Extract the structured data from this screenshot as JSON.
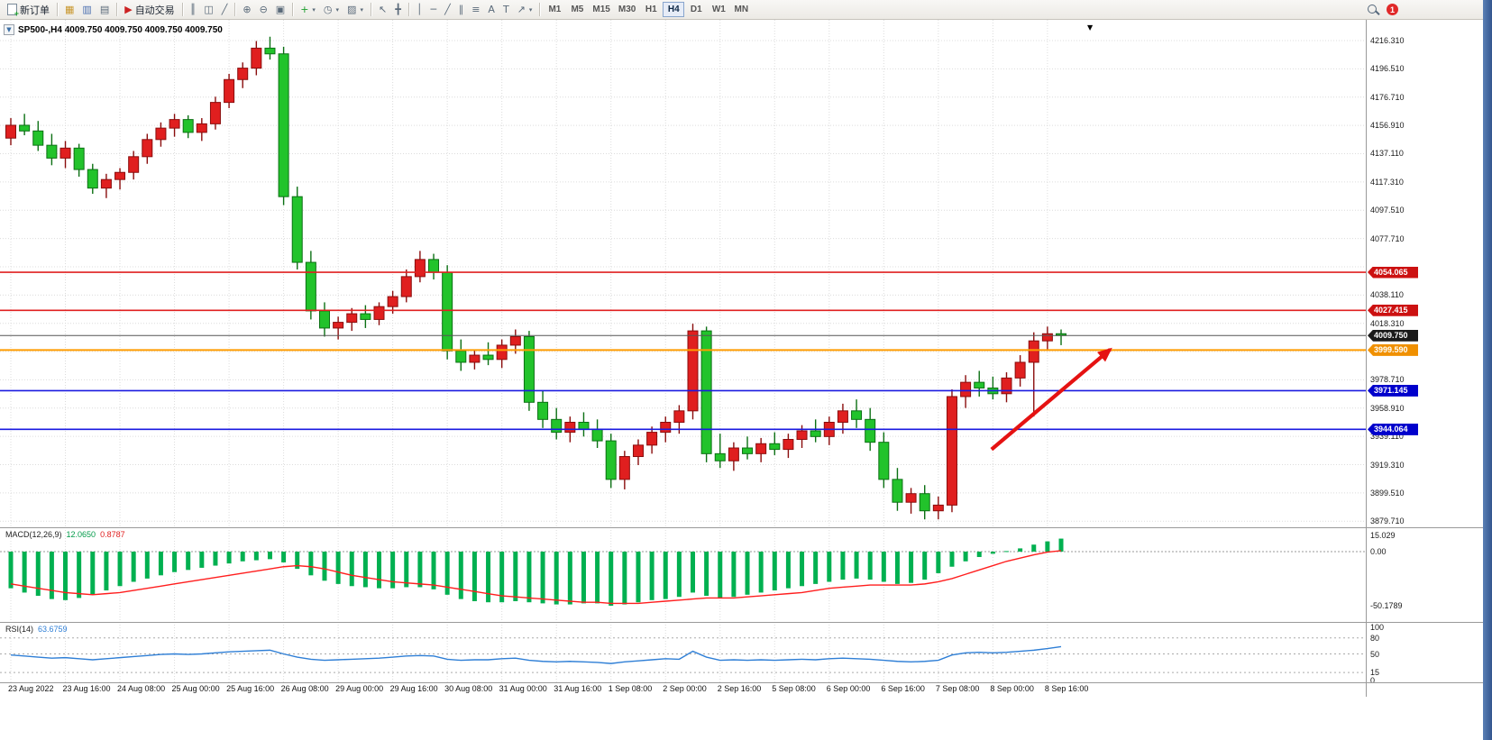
{
  "toolbar": {
    "new_order_label": "新订单",
    "autotrading_label": "自动交易",
    "timeframes": [
      "M1",
      "M5",
      "M15",
      "M30",
      "H1",
      "H4",
      "D1",
      "W1",
      "MN"
    ],
    "active_timeframe": "H4",
    "notification_count": "1",
    "icons": {
      "market_watch": "▦",
      "data_window": "▥",
      "navigator": "▤",
      "autotrading_play": "▶",
      "bar_chart": "║",
      "candlestick_chart": "◫",
      "line_chart": "╱",
      "zoom_in": "⊕",
      "zoom_out": "⊖",
      "tile_windows": "▣",
      "indicators_add": "+",
      "periods": "◷",
      "templates": "▨",
      "cursor": "↖",
      "crosshair": "╋",
      "vertical_line": "│",
      "horizontal_line": "─",
      "trend_line": "╱",
      "channel": "∥",
      "fibonacci": "≡",
      "text": "A",
      "text_label": "T",
      "arrows": "↗",
      "dropdown": "▾"
    }
  },
  "chart": {
    "title": "SP500-,H4 4009.750 4009.750 4009.750 4009.750",
    "one_click_arrow": "▼",
    "shift_marker": "▼",
    "price_axis_labels": [
      "4216.310",
      "4196.510",
      "4176.710",
      "4156.910",
      "4137.110",
      "4117.310",
      "4097.510",
      "4077.710",
      "4038.110",
      "4018.310",
      "3978.710",
      "3958.910",
      "3939.110",
      "3919.310",
      "3899.510",
      "3879.710"
    ],
    "hlines": [
      {
        "label": "4054.065",
        "value": 4054.065,
        "color": "#e02020",
        "badge": "#cc1111",
        "width": 1.6
      },
      {
        "label": "4027.415",
        "value": 4027.415,
        "color": "#e02020",
        "badge": "#cc1111",
        "width": 1.6
      },
      {
        "label": "4009.750",
        "value": 4009.75,
        "color": "#555555",
        "badge": "#1a1a1a",
        "width": 1
      },
      {
        "label": "3999.590",
        "value": 3999.59,
        "color": "#ff9c00",
        "badge": "#f09000",
        "width": 2
      },
      {
        "label": "3971.145",
        "value": 3971.145,
        "color": "#1a1ae0",
        "badge": "#0000cc",
        "width": 1.6
      },
      {
        "label": "3944.064",
        "value": 3944.064,
        "color": "#1a1ae0",
        "badge": "#0000cc",
        "width": 1.6
      }
    ],
    "arrow": {
      "from_bar": 71.9,
      "from_price": 3930,
      "to_bar": 80.6,
      "to_price": 4000,
      "color": "#e51212"
    }
  },
  "indicators": {
    "macd": {
      "name": "MACD(12,26,9)",
      "value_main": "12.0650",
      "value_signal": "0.8787",
      "axis_labels": [
        {
          "text": "15.029",
          "value": 15.029
        },
        {
          "text": "0.00",
          "value": 0
        },
        {
          "text": "-50.1789",
          "value": -50.1789
        }
      ]
    },
    "rsi": {
      "name": "RSI(14)",
      "value": "63.6759",
      "axis_labels": [
        {
          "text": "100",
          "value": 100
        },
        {
          "text": "80",
          "value": 80
        },
        {
          "text": "50",
          "value": 50
        },
        {
          "text": "15",
          "value": 15
        },
        {
          "text": "0",
          "value": 0
        }
      ],
      "levels": [
        80,
        50,
        15
      ]
    }
  },
  "chart_data": {
    "type": "candlestick",
    "symbol": "SP500-",
    "timeframe": "H4",
    "title": "SP500-,H4",
    "ylim": [
      3876.7,
      4222.0
    ],
    "grid_price_top": 4216.31,
    "grid_price_step": 19.8,
    "label_every_n_bars": 4,
    "x_labels": [
      "23 Aug 2022",
      "23 Aug 16:00",
      "24 Aug 08:00",
      "25 Aug 00:00",
      "25 Aug 16:00",
      "26 Aug 08:00",
      "29 Aug 00:00",
      "29 Aug 16:00",
      "30 Aug 08:00",
      "31 Aug 00:00",
      "31 Aug 16:00",
      "1 Sep 08:00",
      "2 Sep 00:00",
      "2 Sep 16:00",
      "5 Sep 08:00",
      "6 Sep 00:00",
      "6 Sep 16:00",
      "7 Sep 08:00",
      "8 Sep 00:00",
      "8 Sep 16:00"
    ],
    "ohlc": [
      [
        4148,
        4162,
        4143,
        4157
      ],
      [
        4157,
        4165,
        4150,
        4153
      ],
      [
        4153,
        4160,
        4139,
        4143
      ],
      [
        4143,
        4151,
        4129,
        4134
      ],
      [
        4134,
        4146,
        4127,
        4141
      ],
      [
        4141,
        4144,
        4121,
        4126
      ],
      [
        4126,
        4130,
        4109,
        4113
      ],
      [
        4113,
        4123,
        4106,
        4119
      ],
      [
        4119,
        4127,
        4112,
        4124
      ],
      [
        4124,
        4139,
        4119,
        4135
      ],
      [
        4135,
        4151,
        4130,
        4147
      ],
      [
        4147,
        4159,
        4142,
        4155
      ],
      [
        4155,
        4165,
        4149,
        4161
      ],
      [
        4161,
        4164,
        4148,
        4152
      ],
      [
        4152,
        4162,
        4146,
        4158
      ],
      [
        4158,
        4177,
        4154,
        4173
      ],
      [
        4173,
        4193,
        4169,
        4189
      ],
      [
        4189,
        4201,
        4183,
        4197
      ],
      [
        4197,
        4216,
        4192,
        4211
      ],
      [
        4211,
        4219,
        4203,
        4207
      ],
      [
        4207,
        4212,
        4101,
        4107
      ],
      [
        4107,
        4114,
        4056,
        4061
      ],
      [
        4061,
        4069,
        4021,
        4027
      ],
      [
        4027,
        4033,
        4009,
        4015
      ],
      [
        4015,
        4023,
        4007,
        4019
      ],
      [
        4019,
        4029,
        4013,
        4025
      ],
      [
        4025,
        4031,
        4015,
        4021
      ],
      [
        4021,
        4033,
        4017,
        4030
      ],
      [
        4030,
        4041,
        4025,
        4037
      ],
      [
        4037,
        4056,
        4033,
        4051
      ],
      [
        4051,
        4069,
        4047,
        4063
      ],
      [
        4063,
        4067,
        4049,
        4054
      ],
      [
        4054,
        4059,
        3993,
        3999
      ],
      [
        3999,
        4007,
        3985,
        3991
      ],
      [
        3991,
        4000,
        3986,
        3996
      ],
      [
        3996,
        4005,
        3989,
        3993
      ],
      [
        3993,
        4007,
        3987,
        4003
      ],
      [
        4003,
        4014,
        3997,
        4009
      ],
      [
        4009,
        4013,
        3957,
        3963
      ],
      [
        3963,
        3971,
        3945,
        3951
      ],
      [
        3951,
        3959,
        3937,
        3942
      ],
      [
        3942,
        3953,
        3935,
        3949
      ],
      [
        3949,
        3956,
        3939,
        3944
      ],
      [
        3944,
        3951,
        3931,
        3936
      ],
      [
        3936,
        3941,
        3903,
        3909
      ],
      [
        3909,
        3929,
        3902,
        3925
      ],
      [
        3925,
        3937,
        3919,
        3933
      ],
      [
        3933,
        3946,
        3927,
        3942
      ],
      [
        3942,
        3953,
        3935,
        3949
      ],
      [
        3949,
        3961,
        3941,
        3957
      ],
      [
        3957,
        4018,
        3951,
        4013
      ],
      [
        4013,
        4016,
        3921,
        3927
      ],
      [
        3927,
        3941,
        3917,
        3922
      ],
      [
        3922,
        3935,
        3915,
        3931
      ],
      [
        3931,
        3939,
        3923,
        3927
      ],
      [
        3927,
        3938,
        3921,
        3934
      ],
      [
        3934,
        3942,
        3926,
        3930
      ],
      [
        3930,
        3941,
        3924,
        3937
      ],
      [
        3937,
        3947,
        3931,
        3943
      ],
      [
        3943,
        3951,
        3935,
        3939
      ],
      [
        3939,
        3953,
        3933,
        3949
      ],
      [
        3949,
        3962,
        3941,
        3957
      ],
      [
        3957,
        3965,
        3945,
        3951
      ],
      [
        3951,
        3959,
        3929,
        3935
      ],
      [
        3935,
        3942,
        3903,
        3909
      ],
      [
        3909,
        3917,
        3887,
        3893
      ],
      [
        3893,
        3903,
        3885,
        3899
      ],
      [
        3899,
        3905,
        3881,
        3887
      ],
      [
        3887,
        3897,
        3881,
        3891
      ],
      [
        3891,
        3972,
        3886,
        3967
      ],
      [
        3967,
        3982,
        3959,
        3977
      ],
      [
        3977,
        3985,
        3967,
        3973
      ],
      [
        3973,
        3981,
        3965,
        3969
      ],
      [
        3969,
        3984,
        3963,
        3980
      ],
      [
        3980,
        3996,
        3974,
        3991
      ],
      [
        3991,
        4012,
        3953,
        4006
      ],
      [
        4006,
        4016,
        3999,
        4011
      ],
      [
        4011,
        4014,
        4003,
        4009.75
      ]
    ],
    "macd": {
      "ylim": [
        -50.1789,
        15.029
      ],
      "histogram": [
        -34,
        -38,
        -41,
        -44,
        -45,
        -43,
        -40,
        -36,
        -32,
        -28,
        -25,
        -22,
        -19,
        -17,
        -15,
        -13,
        -11,
        -9,
        -8,
        -7,
        -10,
        -16,
        -22,
        -27,
        -30,
        -32,
        -33,
        -34,
        -34,
        -33,
        -33,
        -35,
        -40,
        -44,
        -46,
        -47,
        -47,
        -46,
        -47,
        -48,
        -49,
        -49,
        -48,
        -48,
        -50.18,
        -49,
        -47,
        -45,
        -44,
        -42,
        -38,
        -41,
        -43,
        -42,
        -40,
        -38,
        -36,
        -34,
        -32,
        -30,
        -28,
        -26,
        -25,
        -26,
        -28,
        -30,
        -29,
        -26,
        -20,
        -14,
        -9,
        -5,
        -2,
        0.5,
        3,
        6.5,
        9.5,
        12.07
      ],
      "signal": [
        -30,
        -32,
        -34,
        -36,
        -38,
        -39,
        -40,
        -39,
        -38,
        -36,
        -34,
        -32,
        -30,
        -28,
        -26,
        -24,
        -22,
        -20,
        -18,
        -16,
        -14,
        -13,
        -14,
        -16,
        -19,
        -22,
        -24,
        -26,
        -28,
        -29,
        -30,
        -31,
        -33,
        -35,
        -37,
        -39,
        -41,
        -42,
        -43,
        -44,
        -45,
        -46,
        -47,
        -47,
        -48,
        -48,
        -48,
        -47,
        -46,
        -45,
        -44,
        -43,
        -43,
        -43,
        -42,
        -41,
        -40,
        -39,
        -38,
        -36,
        -34,
        -33,
        -32,
        -31,
        -31,
        -31,
        -31,
        -30,
        -28,
        -25,
        -21,
        -17,
        -13,
        -9,
        -6,
        -3,
        -0.5,
        0.88
      ]
    },
    "rsi": {
      "ylim": [
        0,
        100
      ],
      "values": [
        48,
        46,
        44,
        42,
        43,
        41,
        39,
        41,
        43,
        45,
        47,
        49,
        50,
        49,
        50,
        52,
        54,
        55,
        56,
        57,
        50,
        44,
        40,
        38,
        39,
        40,
        41,
        42,
        44,
        46,
        47,
        46,
        40,
        38,
        39,
        39,
        41,
        42,
        38,
        36,
        35,
        36,
        35,
        34,
        32,
        35,
        37,
        39,
        41,
        40,
        55,
        44,
        38,
        39,
        38,
        39,
        38,
        39,
        40,
        39,
        41,
        42,
        41,
        40,
        38,
        36,
        35,
        36,
        38,
        48,
        52,
        53,
        52,
        53,
        55,
        57,
        60,
        63.68
      ]
    },
    "colors": {
      "bull": "#e01f1f",
      "bull_border": "#8a0d0d",
      "bear": "#22c32b",
      "bear_border": "#0c7014",
      "macd_histogram": "#00b050",
      "macd_signal": "#ff1e1e",
      "rsi_line": "#2f7fd6",
      "grid": "#dcdcdc",
      "background": "#ffffff"
    }
  }
}
